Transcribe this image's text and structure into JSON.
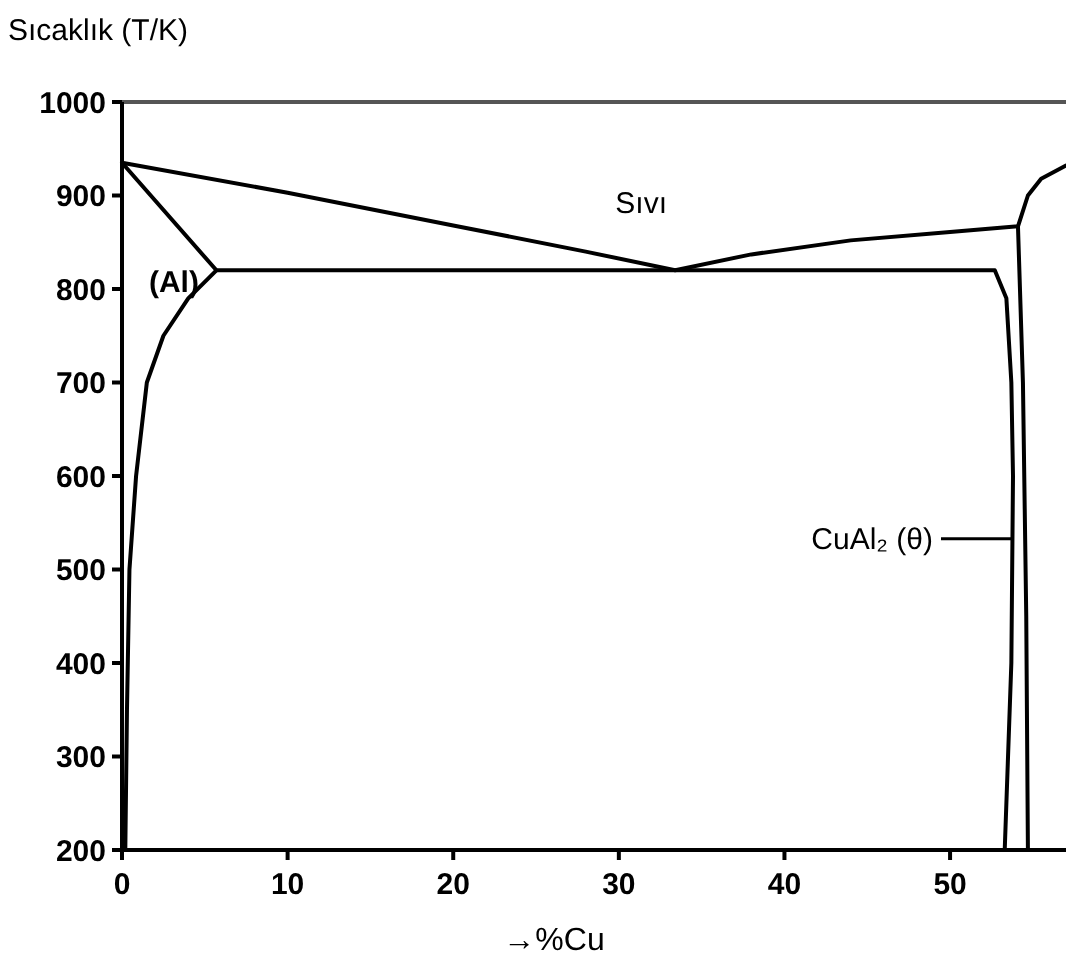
{
  "chart_data": {
    "type": "line",
    "ylabel": "Sıcaklık (T/K)",
    "xlabel": "→%Cu",
    "xlim": [
      0,
      57
    ],
    "ylim": [
      200,
      1000
    ],
    "xticks": [
      0,
      10,
      20,
      30,
      40,
      50
    ],
    "yticks": [
      200,
      300,
      400,
      500,
      600,
      700,
      800,
      900,
      1000
    ],
    "grid": false,
    "series": [
      {
        "color": "#000000",
        "x": [
          0,
          10,
          20,
          28,
          33.4,
          38,
          44,
          50,
          54.1,
          54.7,
          55.5,
          57
        ],
        "values": [
          935,
          903,
          868,
          840,
          820,
          837,
          852,
          861,
          867,
          900,
          918,
          932
        ]
      },
      {
        "color": "#000000",
        "x": [
          0,
          5.7,
          52.7,
          53.4,
          53.7,
          53.8,
          53.7,
          53.3
        ],
        "values": [
          935,
          820,
          820,
          790,
          700,
          600,
          400,
          200
        ]
      },
      {
        "color": "#000000",
        "x": [
          5.7,
          4,
          2.5,
          1.5,
          0.85,
          0.45,
          0.3,
          0.2
        ],
        "values": [
          820,
          790,
          750,
          700,
          600,
          500,
          350,
          200
        ]
      },
      {
        "color": "#000000",
        "x": [
          54.1,
          54.4,
          54.6,
          54.7
        ],
        "values": [
          867,
          700,
          450,
          200
        ]
      }
    ],
    "annotations": [
      "Sıvı",
      "(Al)",
      {
        "text": "CuAl₂ (θ)",
        "x": 53.8,
        "y": 533
      }
    ]
  }
}
